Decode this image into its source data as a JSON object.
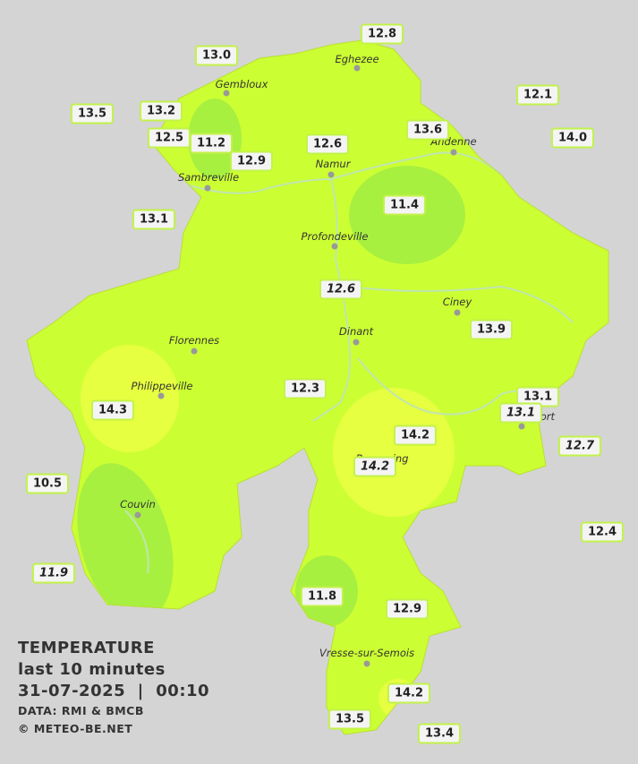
{
  "legend": {
    "title": "TEMPERATURE",
    "subtitle": "last 10 minutes",
    "datetime": "31-07-2025  |  00:10",
    "source": "DATA: RMI & BMCB",
    "credit": "© METEO-BE.NET"
  },
  "towns": [
    "Eghezee",
    "Gembloux",
    "Andenne",
    "Namur",
    "Sambreville",
    "Profondeville",
    "Ciney",
    "Dinant",
    "Florennes",
    "Philippeville",
    "Rochefort",
    "Beauraing",
    "Couvin",
    "Vresse-sur-Semois"
  ],
  "stations": [
    {
      "value": "13.0",
      "italic": false
    },
    {
      "value": "12.8",
      "italic": false
    },
    {
      "value": "12.1",
      "italic": false
    },
    {
      "value": "13.5",
      "italic": false
    },
    {
      "value": "13.2",
      "italic": false
    },
    {
      "value": "12.5",
      "italic": false
    },
    {
      "value": "11.2",
      "italic": false
    },
    {
      "value": "12.9",
      "italic": false
    },
    {
      "value": "12.6",
      "italic": false
    },
    {
      "value": "13.6",
      "italic": false
    },
    {
      "value": "14.0",
      "italic": false
    },
    {
      "value": "13.1",
      "italic": false
    },
    {
      "value": "11.4",
      "italic": false
    },
    {
      "value": "12.6",
      "italic": true
    },
    {
      "value": "13.9",
      "italic": false
    },
    {
      "value": "12.3",
      "italic": false
    },
    {
      "value": "14.3",
      "italic": false
    },
    {
      "value": "13.1",
      "italic": false
    },
    {
      "value": "13.1",
      "italic": true
    },
    {
      "value": "14.2",
      "italic": false
    },
    {
      "value": "14.2",
      "italic": true
    },
    {
      "value": "12.7",
      "italic": true
    },
    {
      "value": "10.5",
      "italic": false
    },
    {
      "value": "12.4",
      "italic": false
    },
    {
      "value": "11.9",
      "italic": true
    },
    {
      "value": "11.8",
      "italic": false
    },
    {
      "value": "12.9",
      "italic": false
    },
    {
      "value": "14.2",
      "italic": false
    },
    {
      "value": "13.5",
      "italic": false
    },
    {
      "value": "13.4",
      "italic": false
    }
  ]
}
